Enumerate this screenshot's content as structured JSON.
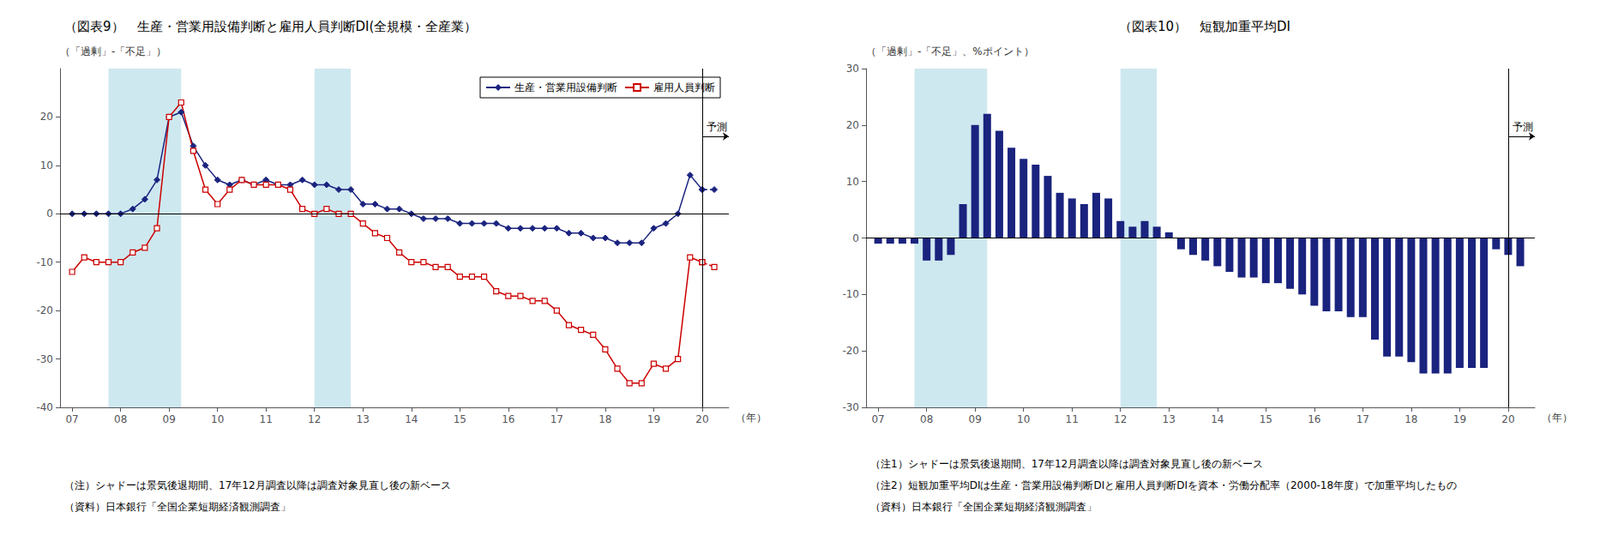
{
  "chart_data": [
    {
      "type": "line",
      "title": "（図表9）　生産・営業用設備判断と雇用人員判断DI(全規模・全産業）",
      "y_label": "（「過剰」-「不足」）",
      "x_label": "（年）",
      "notes": [
        "（注）シャドーは景気後退期間、17年12月調査以降は調査対象見直し後の新ベース",
        "（資料）日本銀行「全国企業短期経済観測調査」"
      ],
      "annotation": "予測",
      "forecast_start": 20.0,
      "hline": 0,
      "shading": {
        "color": "#add8e6",
        "ranges": [
          [
            7.75,
            9.25
          ],
          [
            12.0,
            12.75
          ]
        ]
      },
      "x": [
        7.0,
        7.25,
        7.5,
        7.75,
        8.0,
        8.25,
        8.5,
        8.75,
        9.0,
        9.25,
        9.5,
        9.75,
        10.0,
        10.25,
        10.5,
        10.75,
        11.0,
        11.25,
        11.5,
        11.75,
        12.0,
        12.25,
        12.5,
        12.75,
        13.0,
        13.25,
        13.5,
        13.75,
        14.0,
        14.25,
        14.5,
        14.75,
        15.0,
        15.25,
        15.5,
        15.75,
        16.0,
        16.25,
        16.5,
        16.75,
        17.0,
        17.25,
        17.5,
        17.75,
        18.0,
        18.25,
        18.5,
        18.75,
        19.0,
        19.25,
        19.5,
        19.75,
        20.0,
        20.25
      ],
      "series": [
        {
          "name": "生産・営業用設備判断",
          "color": "#1a237e",
          "marker": "diamond",
          "values": [
            0,
            0,
            0,
            0,
            0,
            1,
            3,
            7,
            20,
            21,
            14,
            10,
            7,
            6,
            7,
            6,
            7,
            6,
            6,
            7,
            6,
            6,
            5,
            5,
            2,
            2,
            1,
            1,
            0,
            -1,
            -1,
            -1,
            -2,
            -2,
            -2,
            -2,
            -3,
            -3,
            -3,
            -3,
            -3,
            -4,
            -4,
            -5,
            -5,
            -6,
            -6,
            -6,
            -3,
            -2,
            0,
            8,
            5,
            5
          ]
        },
        {
          "name": "雇用人員判断",
          "color": "#cc0000",
          "marker": "hollow_square",
          "values": [
            -12,
            -9,
            -10,
            -10,
            -10,
            -8,
            -7,
            -3,
            20,
            23,
            13,
            5,
            2,
            5,
            7,
            6,
            6,
            6,
            5,
            1,
            0,
            1,
            0,
            0,
            -2,
            -4,
            -5,
            -8,
            -10,
            -10,
            -11,
            -11,
            -13,
            -13,
            -13,
            -16,
            -17,
            -17,
            -18,
            -18,
            -20,
            -23,
            -24,
            -25,
            -28,
            -32,
            -35,
            -35,
            -31,
            -32,
            -30,
            -9,
            -10,
            -11
          ]
        }
      ],
      "xlim": [
        6.75,
        20.55
      ],
      "xticks": [
        {
          "value": 7,
          "label": "07"
        },
        {
          "value": 8,
          "label": "08"
        },
        {
          "value": 9,
          "label": "09"
        },
        {
          "value": 10,
          "label": "10"
        },
        {
          "value": 11,
          "label": "11"
        },
        {
          "value": 12,
          "label": "12"
        },
        {
          "value": 13,
          "label": "13"
        },
        {
          "value": 14,
          "label": "14"
        },
        {
          "value": 15,
          "label": "15"
        },
        {
          "value": 16,
          "label": "16"
        },
        {
          "value": 17,
          "label": "17"
        },
        {
          "value": 18,
          "label": "18"
        },
        {
          "value": 19,
          "label": "19"
        },
        {
          "value": 20,
          "label": "20"
        }
      ],
      "ylim": [
        -40,
        30
      ],
      "yticks": [
        -40,
        -30,
        -20,
        -10,
        0,
        10,
        20
      ],
      "grid": false,
      "legend": "upper right"
    },
    {
      "type": "bar",
      "title": "（図表10）　短観加重平均DI",
      "y_label": "（「過剰」-「不足」、%ポイント）",
      "x_label": "（年）",
      "notes": [
        "（注1）シャドーは景気後退期間、17年12月調査以降は調査対象見直し後の新ベース",
        "（注2）短観加重平均DIは生産・営業用設備判断DIと雇用人員判断DIを資本・労働分配率（2000-18年度）で加重平均したもの",
        "（資料）日本銀行「全国企業短期経済観測調査」"
      ],
      "annotation": "予測",
      "forecast_start": 20.0,
      "hline": 0,
      "shading": {
        "color": "#add8e6",
        "ranges": [
          [
            7.75,
            9.25
          ],
          [
            12.0,
            12.75
          ]
        ]
      },
      "x": [
        7.0,
        7.25,
        7.5,
        7.75,
        8.0,
        8.25,
        8.5,
        8.75,
        9.0,
        9.25,
        9.5,
        9.75,
        10.0,
        10.25,
        10.5,
        10.75,
        11.0,
        11.25,
        11.5,
        11.75,
        12.0,
        12.25,
        12.5,
        12.75,
        13.0,
        13.25,
        13.5,
        13.75,
        14.0,
        14.25,
        14.5,
        14.75,
        15.0,
        15.25,
        15.5,
        15.75,
        16.0,
        16.25,
        16.5,
        16.75,
        17.0,
        17.25,
        17.5,
        17.75,
        18.0,
        18.25,
        18.5,
        18.75,
        19.0,
        19.25,
        19.5,
        19.75,
        20.0,
        20.25
      ],
      "values": [
        -1,
        -1,
        -1,
        -1,
        -4,
        -4,
        -3,
        6,
        20,
        22,
        19,
        16,
        14,
        13,
        11,
        8,
        7,
        6,
        8,
        7,
        3,
        2,
        3,
        2,
        1,
        -2,
        -3,
        -4,
        -5,
        -6,
        -7,
        -7,
        -8,
        -8,
        -9,
        -10,
        -12,
        -13,
        -13,
        -14,
        -14,
        -18,
        -21,
        -21,
        -22,
        -24,
        -24,
        -24,
        -23,
        -23,
        -23,
        -2,
        -3,
        -5
      ],
      "color": "#1a237e",
      "xlim": [
        6.75,
        20.55
      ],
      "xticks": [
        {
          "value": 7,
          "label": "07"
        },
        {
          "value": 8,
          "label": "08"
        },
        {
          "value": 9,
          "label": "09"
        },
        {
          "value": 10,
          "label": "10"
        },
        {
          "value": 11,
          "label": "11"
        },
        {
          "value": 12,
          "label": "12"
        },
        {
          "value": 13,
          "label": "13"
        },
        {
          "value": 14,
          "label": "14"
        },
        {
          "value": 15,
          "label": "15"
        },
        {
          "value": 16,
          "label": "16"
        },
        {
          "value": 17,
          "label": "17"
        },
        {
          "value": 18,
          "label": "18"
        },
        {
          "value": 19,
          "label": "19"
        },
        {
          "value": 20,
          "label": "20"
        }
      ],
      "ylim": [
        -30,
        30
      ],
      "yticks": [
        -30,
        -20,
        -10,
        0,
        10,
        20,
        30
      ],
      "grid": false
    }
  ]
}
